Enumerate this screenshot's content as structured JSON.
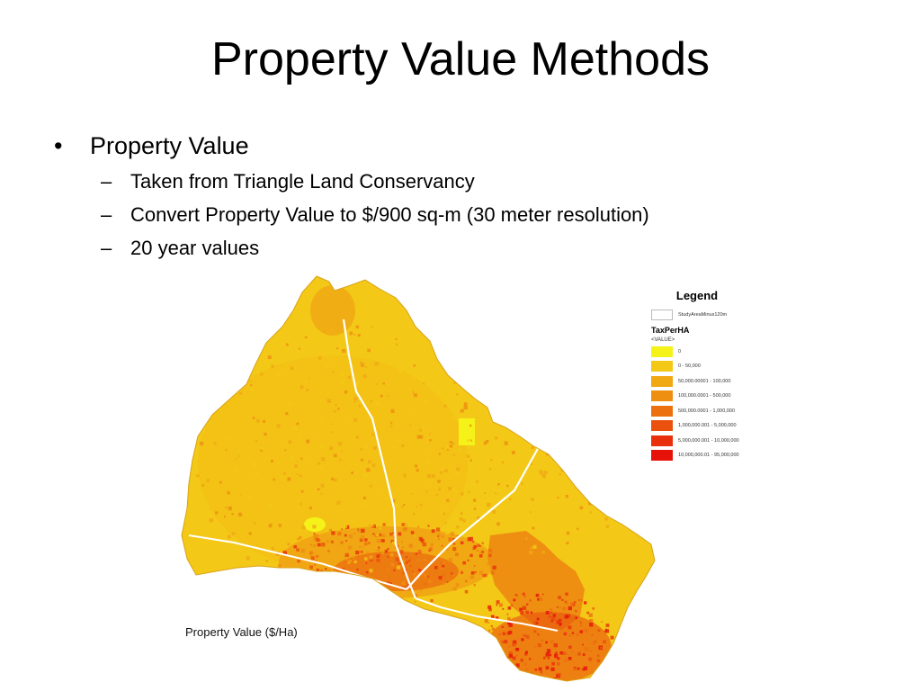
{
  "slide": {
    "title": "Property Value Methods",
    "bullets": [
      {
        "text": "Property Value",
        "sub": [
          "Taken from Triangle Land Conservancy",
          "Convert Property Value to $/900 sq-m (30 meter resolution)",
          "20 year values"
        ]
      }
    ]
  },
  "map": {
    "caption": "Property Value ($/Ha)",
    "legend": {
      "title": "Legend",
      "boundary_label": "StudyAreaMinus120m",
      "field": "TaxPerHA",
      "value_header": "<VALUE>",
      "classes": [
        {
          "label": "0",
          "color": "#f5f219"
        },
        {
          "label": "0 - 50,000",
          "color": "#f3c816"
        },
        {
          "label": "50,000.00001 - 100,000",
          "color": "#f0a814"
        },
        {
          "label": "100,000.0001 - 500,000",
          "color": "#ee8f12"
        },
        {
          "label": "500,000.0001 - 1,000,000",
          "color": "#ec7010"
        },
        {
          "label": "1,000,000.001 - 5,000,000",
          "color": "#ea500e"
        },
        {
          "label": "5,000,000.001 - 10,000,000",
          "color": "#e8300c"
        },
        {
          "label": "10,000,000.01 - 95,000,000",
          "color": "#e6120a"
        }
      ]
    }
  }
}
